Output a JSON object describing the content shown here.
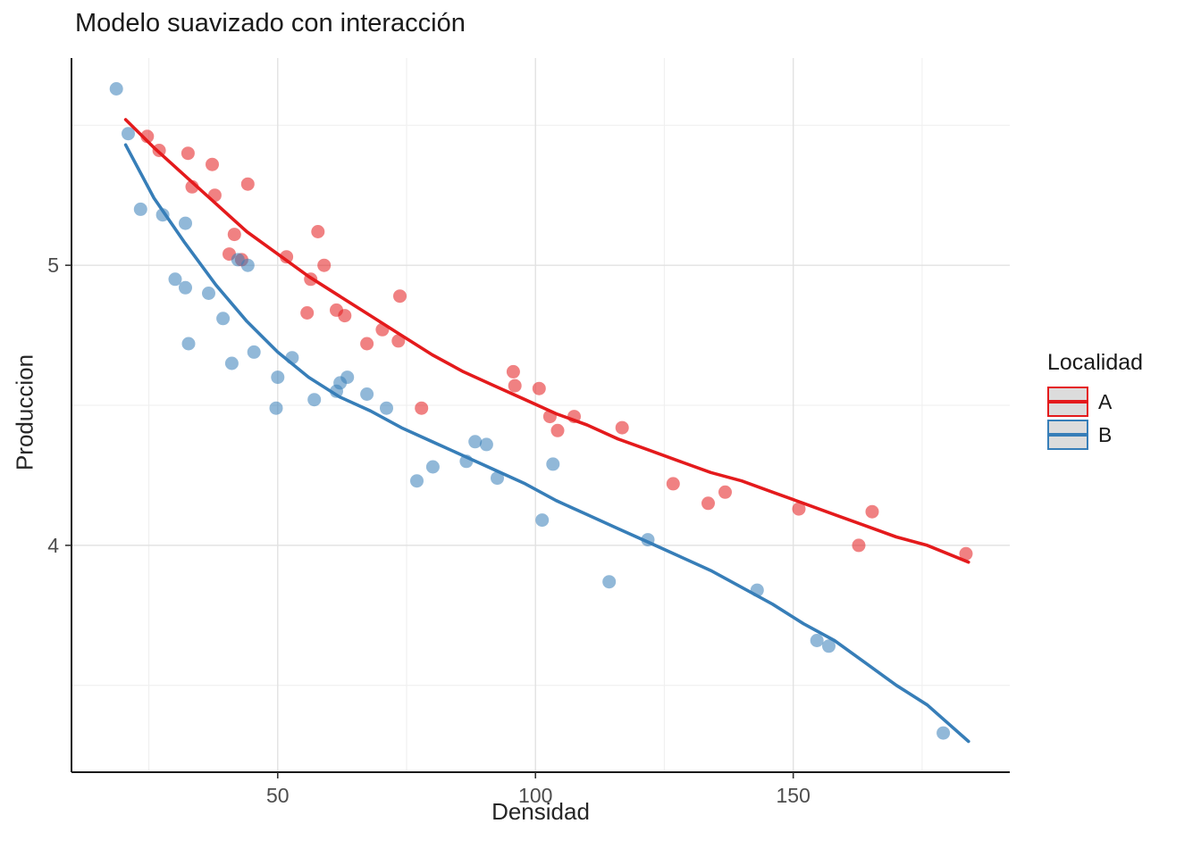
{
  "title": "Modelo suavizado con interacción",
  "legend": {
    "title": "Localidad",
    "items": [
      {
        "label": "A",
        "color": "#E41A1C"
      },
      {
        "label": "B",
        "color": "#377EB8"
      }
    ]
  },
  "chart_data": {
    "type": "scatter",
    "title": "Modelo suavizado con interacción",
    "xlabel": "Densidad",
    "ylabel": "Produccion",
    "xlim": [
      10,
      192
    ],
    "ylim": [
      3.19,
      5.74
    ],
    "x_ticks": [
      50,
      100,
      150
    ],
    "y_ticks": [
      4,
      5
    ],
    "x_minor_ticks": [
      25,
      75,
      125,
      175
    ],
    "y_minor_ticks": [
      3.5,
      4.5,
      5.5
    ],
    "grid": true,
    "legend_position": "right",
    "colors": {
      "grid_major": "#e2e2e2",
      "grid_minor": "#f0f0f0",
      "axis_line": "#1a1a1a",
      "tick_label": "#4d4d4d"
    },
    "series": [
      {
        "name": "A",
        "color": "#E41A1C",
        "points": [
          [
            24.7,
            5.46
          ],
          [
            27.0,
            5.41
          ],
          [
            32.6,
            5.4
          ],
          [
            37.3,
            5.36
          ],
          [
            33.4,
            5.28
          ],
          [
            37.8,
            5.25
          ],
          [
            44.2,
            5.29
          ],
          [
            41.6,
            5.11
          ],
          [
            40.6,
            5.04
          ],
          [
            43.0,
            5.02
          ],
          [
            51.7,
            5.03
          ],
          [
            57.8,
            5.12
          ],
          [
            56.4,
            4.95
          ],
          [
            59.0,
            5.0
          ],
          [
            55.7,
            4.83
          ],
          [
            61.4,
            4.84
          ],
          [
            63.0,
            4.82
          ],
          [
            73.7,
            4.89
          ],
          [
            67.3,
            4.72
          ],
          [
            70.3,
            4.77
          ],
          [
            73.4,
            4.73
          ],
          [
            77.9,
            4.49
          ],
          [
            95.7,
            4.62
          ],
          [
            96.0,
            4.57
          ],
          [
            100.7,
            4.56
          ],
          [
            102.8,
            4.46
          ],
          [
            104.3,
            4.41
          ],
          [
            107.5,
            4.46
          ],
          [
            116.8,
            4.42
          ],
          [
            126.7,
            4.22
          ],
          [
            133.5,
            4.15
          ],
          [
            136.8,
            4.19
          ],
          [
            151.1,
            4.13
          ],
          [
            162.7,
            4.0
          ],
          [
            165.3,
            4.12
          ],
          [
            183.5,
            3.97
          ]
        ],
        "smooth": [
          [
            20.5,
            5.52
          ],
          [
            26,
            5.42
          ],
          [
            32,
            5.32
          ],
          [
            38,
            5.22
          ],
          [
            44,
            5.12
          ],
          [
            50,
            5.04
          ],
          [
            56,
            4.96
          ],
          [
            62,
            4.89
          ],
          [
            68,
            4.82
          ],
          [
            74,
            4.75
          ],
          [
            80,
            4.68
          ],
          [
            86,
            4.62
          ],
          [
            92,
            4.57
          ],
          [
            98,
            4.52
          ],
          [
            104,
            4.47
          ],
          [
            110,
            4.43
          ],
          [
            116,
            4.38
          ],
          [
            122,
            4.34
          ],
          [
            128,
            4.3
          ],
          [
            134,
            4.26
          ],
          [
            140,
            4.23
          ],
          [
            146,
            4.19
          ],
          [
            152,
            4.15
          ],
          [
            158,
            4.11
          ],
          [
            164,
            4.07
          ],
          [
            170,
            4.03
          ],
          [
            176,
            4.0
          ],
          [
            184,
            3.94
          ]
        ]
      },
      {
        "name": "B",
        "color": "#377EB8",
        "points": [
          [
            18.7,
            5.63
          ],
          [
            21.0,
            5.47
          ],
          [
            23.4,
            5.2
          ],
          [
            27.7,
            5.18
          ],
          [
            32.1,
            5.15
          ],
          [
            30.1,
            4.95
          ],
          [
            32.1,
            4.92
          ],
          [
            36.6,
            4.9
          ],
          [
            39.4,
            4.81
          ],
          [
            32.7,
            4.72
          ],
          [
            41.1,
            4.65
          ],
          [
            45.4,
            4.69
          ],
          [
            42.3,
            5.02
          ],
          [
            44.2,
            5.0
          ],
          [
            50.0,
            4.6
          ],
          [
            52.8,
            4.67
          ],
          [
            49.7,
            4.49
          ],
          [
            57.1,
            4.52
          ],
          [
            61.4,
            4.55
          ],
          [
            62.1,
            4.58
          ],
          [
            63.5,
            4.6
          ],
          [
            67.3,
            4.54
          ],
          [
            71.1,
            4.49
          ],
          [
            77.0,
            4.23
          ],
          [
            80.1,
            4.28
          ],
          [
            86.6,
            4.3
          ],
          [
            88.3,
            4.37
          ],
          [
            90.5,
            4.36
          ],
          [
            92.6,
            4.24
          ],
          [
            101.3,
            4.09
          ],
          [
            103.4,
            4.29
          ],
          [
            114.3,
            3.87
          ],
          [
            121.8,
            4.02
          ],
          [
            143.0,
            3.84
          ],
          [
            154.6,
            3.66
          ],
          [
            156.9,
            3.64
          ],
          [
            179.1,
            3.33
          ]
        ],
        "smooth": [
          [
            20.5,
            5.43
          ],
          [
            26,
            5.24
          ],
          [
            32,
            5.08
          ],
          [
            38,
            4.93
          ],
          [
            44,
            4.8
          ],
          [
            50,
            4.69
          ],
          [
            56,
            4.6
          ],
          [
            62,
            4.53
          ],
          [
            68,
            4.48
          ],
          [
            74,
            4.42
          ],
          [
            80,
            4.37
          ],
          [
            86,
            4.32
          ],
          [
            92,
            4.27
          ],
          [
            98,
            4.22
          ],
          [
            104,
            4.16
          ],
          [
            110,
            4.11
          ],
          [
            116,
            4.06
          ],
          [
            122,
            4.01
          ],
          [
            128,
            3.96
          ],
          [
            134,
            3.91
          ],
          [
            140,
            3.85
          ],
          [
            146,
            3.79
          ],
          [
            152,
            3.72
          ],
          [
            158,
            3.66
          ],
          [
            164,
            3.58
          ],
          [
            170,
            3.5
          ],
          [
            176,
            3.43
          ],
          [
            184,
            3.3
          ]
        ]
      }
    ]
  }
}
